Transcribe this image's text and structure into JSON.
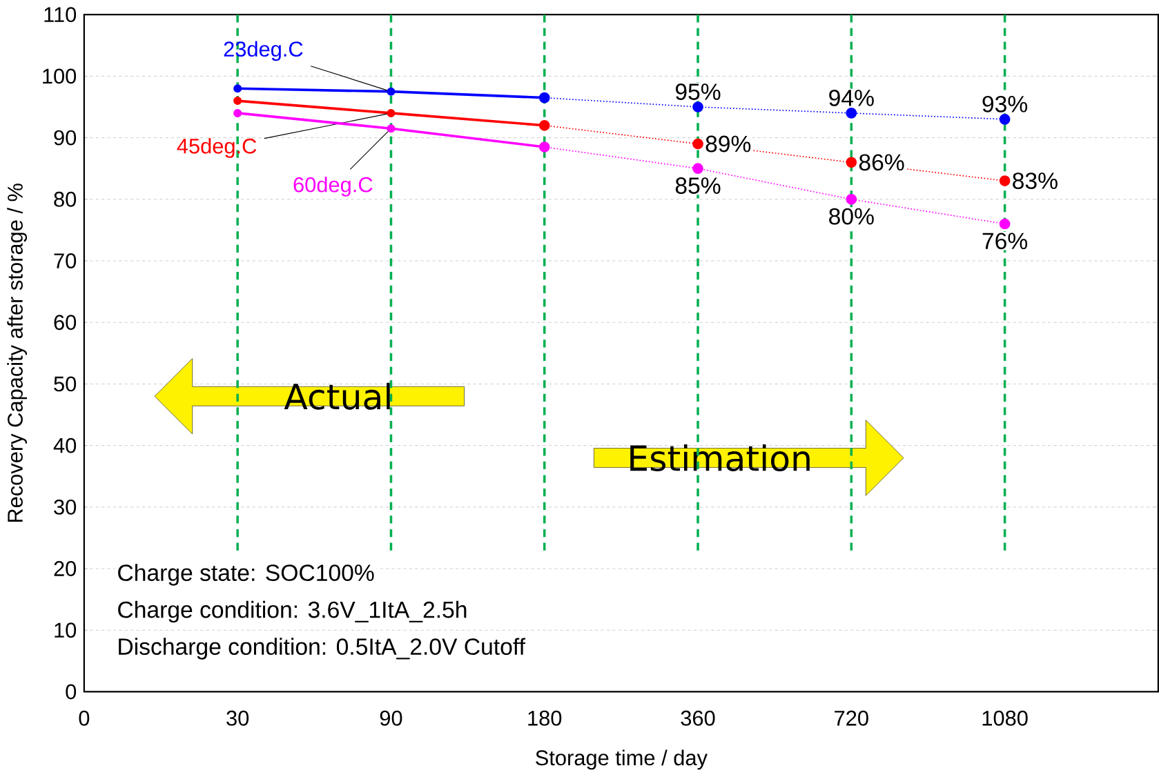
{
  "chart_data": {
    "type": "line",
    "xlabel": "Storage time / day",
    "ylabel": "Recovery Capacity after storage / %",
    "categories": [
      "0",
      "30",
      "90",
      "180",
      "360",
      "720",
      "1080"
    ],
    "ylim": [
      0,
      110
    ],
    "yticks": [
      0,
      10,
      20,
      30,
      40,
      50,
      60,
      70,
      80,
      90,
      100,
      110
    ],
    "grid": "y",
    "marker": "circle",
    "series": [
      {
        "name": "23deg.C",
        "color": "#0000ff",
        "line_style": "solid",
        "values": [
          null,
          98,
          97.5,
          96.5,
          null,
          null,
          null
        ]
      },
      {
        "name": "45deg.C",
        "color": "#ff0000",
        "line_style": "solid",
        "values": [
          null,
          96,
          94,
          92,
          null,
          null,
          null
        ]
      },
      {
        "name": "60deg.C",
        "color": "#ff00ff",
        "line_style": "solid",
        "values": [
          null,
          94,
          91.5,
          88.5,
          null,
          null,
          null
        ]
      },
      {
        "color": "#0000ff",
        "line_style": "dotted",
        "values": [
          null,
          null,
          null,
          96.5,
          95,
          94,
          93
        ],
        "value_labels": [
          null,
          null,
          null,
          null,
          "95%",
          "94%",
          "93%"
        ]
      },
      {
        "color": "#ff0000",
        "line_style": "dotted",
        "values": [
          null,
          null,
          null,
          92,
          89,
          86,
          83
        ],
        "value_labels": [
          null,
          null,
          null,
          null,
          "89%",
          "86%",
          "83%"
        ]
      },
      {
        "color": "#ff00ff",
        "line_style": "dotted",
        "values": [
          null,
          null,
          null,
          88.5,
          85,
          80,
          76
        ],
        "value_labels": [
          null,
          null,
          null,
          null,
          "85%",
          "80%",
          "76%"
        ]
      }
    ],
    "ref_lines": [
      {
        "axis": "x",
        "value": "30",
        "color": "#00b050",
        "line_style": "dashed"
      },
      {
        "axis": "x",
        "value": "90",
        "color": "#00b050",
        "line_style": "dashed"
      },
      {
        "axis": "x",
        "value": "180",
        "color": "#00b050",
        "line_style": "dashed"
      },
      {
        "axis": "x",
        "value": "360",
        "color": "#00b050",
        "line_style": "dashed"
      },
      {
        "axis": "x",
        "value": "720",
        "color": "#00b050",
        "line_style": "dashed"
      },
      {
        "axis": "x",
        "value": "1080",
        "color": "#00b050",
        "line_style": "dashed"
      }
    ],
    "annotations": [
      "Actual",
      "Estimation",
      "Charge state: SOC100%",
      "Charge condition: 3.6V_1ItA_2.5h",
      "Discharge condition: 0.5ItA_2.0V Cutoff"
    ]
  }
}
